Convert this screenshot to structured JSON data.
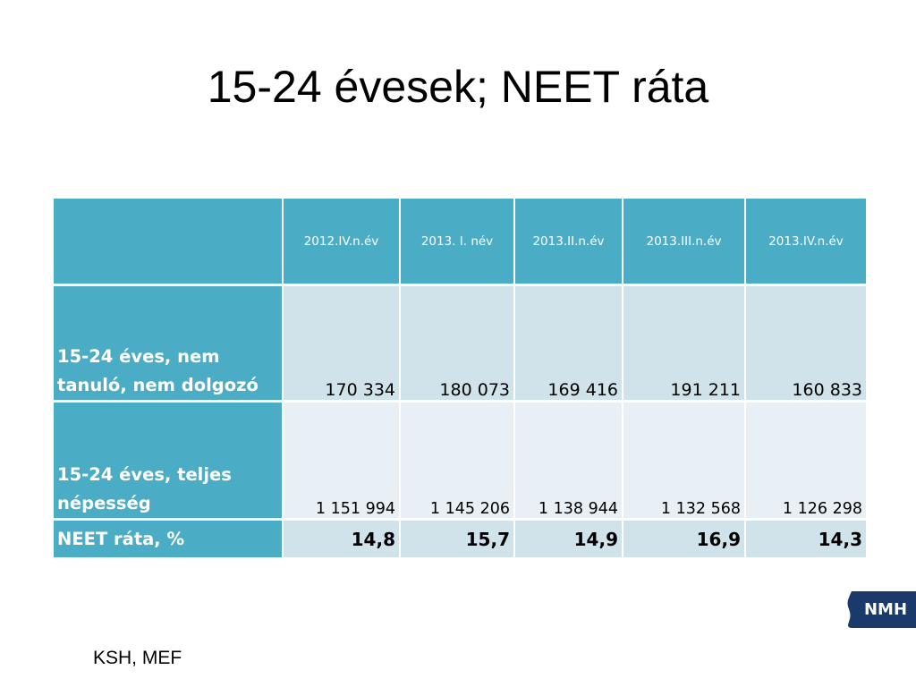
{
  "slide": {
    "title": "15-24 évesek; NEET ráta",
    "source": "KSH, MEF",
    "logo_text": "NMH"
  },
  "table": {
    "columns": [
      "",
      "2012.IV.n.év",
      "2013. I. név",
      "2013.II.n.év",
      "2013.III.n.év",
      "2013.IV.n.év"
    ],
    "rows": [
      {
        "label": "15-24 éves, nem tanuló, nem dolgozó",
        "values": [
          "170 334",
          "180 073",
          "169 416",
          "191 211",
          "160 833"
        ]
      },
      {
        "label": "15-24 éves, teljes népesség",
        "values": [
          "1 151 994",
          "1 145 206",
          "1 138 944",
          "1 132 568",
          "1 126 298"
        ]
      },
      {
        "label": "NEET ráta, %",
        "values": [
          "14,8",
          "15,7",
          "14,9",
          "16,9",
          "14,3"
        ]
      }
    ]
  },
  "colors": {
    "header": "#4bacc6",
    "row_dark": "#d0e3ea",
    "row_light": "#e9f0f5",
    "logo": "#1a3a6b"
  }
}
